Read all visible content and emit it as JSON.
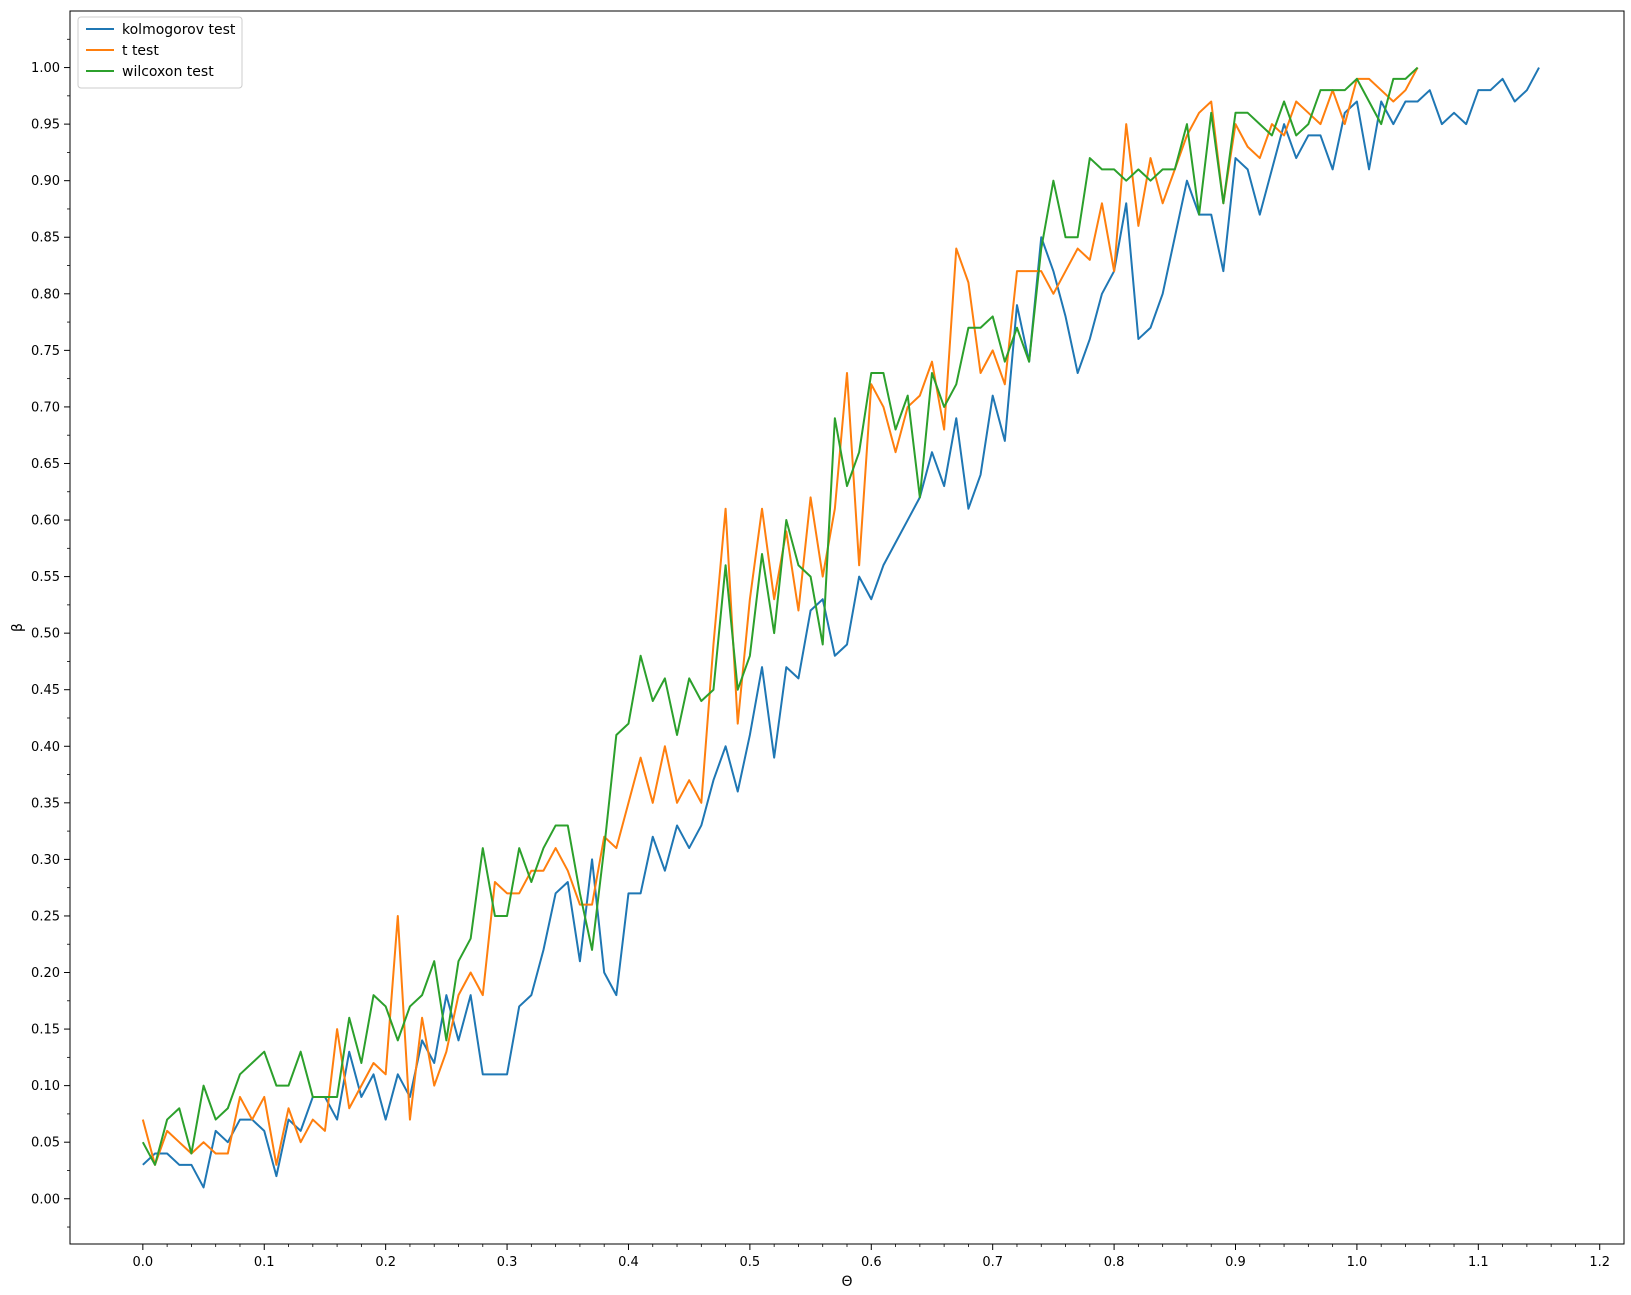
{
  "chart_data": {
    "type": "line",
    "title": "",
    "xlabel": "Θ",
    "ylabel": "β",
    "xlim": [
      -0.06,
      1.22
    ],
    "ylim": [
      -0.04,
      1.05
    ],
    "x_ticks": [
      0.0,
      0.1,
      0.2,
      0.3,
      0.4,
      0.5,
      0.6,
      0.7,
      0.8,
      0.9,
      1.0,
      1.1,
      1.2
    ],
    "x_tick_labels": [
      "0.0",
      "0.1",
      "0.2",
      "0.3",
      "0.4",
      "0.5",
      "0.6",
      "0.7",
      "0.8",
      "0.9",
      "1.0",
      "1.1",
      "1.2"
    ],
    "y_ticks": [
      0.0,
      0.05,
      0.1,
      0.15,
      0.2,
      0.25,
      0.3,
      0.35,
      0.4,
      0.45,
      0.5,
      0.55,
      0.6,
      0.65,
      0.7,
      0.75,
      0.8,
      0.85,
      0.9,
      0.95,
      1.0
    ],
    "y_tick_labels": [
      "0.00",
      "0.05",
      "0.10",
      "0.15",
      "0.20",
      "0.25",
      "0.30",
      "0.35",
      "0.40",
      "0.45",
      "0.50",
      "0.55",
      "0.60",
      "0.65",
      "0.70",
      "0.75",
      "0.80",
      "0.85",
      "0.90",
      "0.95",
      "1.00"
    ],
    "grid": false,
    "legend_position": "top-left",
    "series": [
      {
        "name": "kolmogorov test",
        "color": "#1f77b4",
        "x_start": 0.0,
        "x_step": 0.01,
        "values": [
          0.03,
          0.04,
          0.04,
          0.03,
          0.03,
          0.01,
          0.06,
          0.05,
          0.07,
          0.07,
          0.06,
          0.02,
          0.07,
          0.06,
          0.09,
          0.09,
          0.07,
          0.13,
          0.09,
          0.11,
          0.07,
          0.11,
          0.09,
          0.14,
          0.12,
          0.18,
          0.14,
          0.18,
          0.11,
          0.11,
          0.11,
          0.17,
          0.18,
          0.22,
          0.27,
          0.28,
          0.21,
          0.3,
          0.2,
          0.18,
          0.27,
          0.27,
          0.32,
          0.29,
          0.33,
          0.31,
          0.33,
          0.37,
          0.4,
          0.36,
          0.41,
          0.47,
          0.39,
          0.47,
          0.46,
          0.52,
          0.53,
          0.48,
          0.49,
          0.55,
          0.53,
          0.56,
          0.58,
          0.6,
          0.62,
          0.66,
          0.63,
          0.69,
          0.61,
          0.64,
          0.71,
          0.67,
          0.79,
          0.74,
          0.85,
          0.82,
          0.78,
          0.73,
          0.76,
          0.8,
          0.82,
          0.88,
          0.76,
          0.77,
          0.8,
          0.85,
          0.9,
          0.87,
          0.87,
          0.82,
          0.92,
          0.91,
          0.87,
          0.91,
          0.95,
          0.92,
          0.94,
          0.94,
          0.91,
          0.96,
          0.97,
          0.91,
          0.97,
          0.95,
          0.97,
          0.97,
          0.98,
          0.95,
          0.96,
          0.95,
          0.98,
          0.98,
          0.99,
          0.97,
          0.98,
          1.0
        ]
      },
      {
        "name": "t test",
        "color": "#ff7f0e",
        "x_start": 0.0,
        "x_step": 0.01,
        "values": [
          0.07,
          0.03,
          0.06,
          0.05,
          0.04,
          0.05,
          0.04,
          0.04,
          0.09,
          0.07,
          0.09,
          0.03,
          0.08,
          0.05,
          0.07,
          0.06,
          0.15,
          0.08,
          0.1,
          0.12,
          0.11,
          0.25,
          0.07,
          0.16,
          0.1,
          0.13,
          0.18,
          0.2,
          0.18,
          0.28,
          0.27,
          0.27,
          0.29,
          0.29,
          0.31,
          0.29,
          0.26,
          0.26,
          0.32,
          0.31,
          0.35,
          0.39,
          0.35,
          0.4,
          0.35,
          0.37,
          0.35,
          0.49,
          0.61,
          0.42,
          0.53,
          0.61,
          0.53,
          0.59,
          0.52,
          0.62,
          0.55,
          0.61,
          0.73,
          0.56,
          0.72,
          0.7,
          0.66,
          0.7,
          0.71,
          0.74,
          0.68,
          0.84,
          0.81,
          0.73,
          0.75,
          0.72,
          0.82,
          0.82,
          0.82,
          0.8,
          0.82,
          0.84,
          0.83,
          0.88,
          0.82,
          0.95,
          0.86,
          0.92,
          0.88,
          0.91,
          0.94,
          0.96,
          0.97,
          0.88,
          0.95,
          0.93,
          0.92,
          0.95,
          0.94,
          0.97,
          0.96,
          0.95,
          0.98,
          0.95,
          0.99,
          0.99,
          0.98,
          0.97,
          0.98,
          1.0
        ]
      },
      {
        "name": "wilcoxon test",
        "color": "#2ca02c",
        "x_start": 0.0,
        "x_step": 0.01,
        "values": [
          0.05,
          0.03,
          0.07,
          0.08,
          0.04,
          0.1,
          0.07,
          0.08,
          0.11,
          0.12,
          0.13,
          0.1,
          0.1,
          0.13,
          0.09,
          0.09,
          0.09,
          0.16,
          0.12,
          0.18,
          0.17,
          0.14,
          0.17,
          0.18,
          0.21,
          0.14,
          0.21,
          0.23,
          0.31,
          0.25,
          0.25,
          0.31,
          0.28,
          0.31,
          0.33,
          0.33,
          0.27,
          0.22,
          0.31,
          0.41,
          0.42,
          0.48,
          0.44,
          0.46,
          0.41,
          0.46,
          0.44,
          0.45,
          0.56,
          0.45,
          0.48,
          0.57,
          0.5,
          0.6,
          0.56,
          0.55,
          0.49,
          0.69,
          0.63,
          0.66,
          0.73,
          0.73,
          0.68,
          0.71,
          0.62,
          0.73,
          0.7,
          0.72,
          0.77,
          0.77,
          0.78,
          0.74,
          0.77,
          0.74,
          0.84,
          0.9,
          0.85,
          0.85,
          0.92,
          0.91,
          0.91,
          0.9,
          0.91,
          0.9,
          0.91,
          0.91,
          0.95,
          0.87,
          0.96,
          0.88,
          0.96,
          0.96,
          0.95,
          0.94,
          0.97,
          0.94,
          0.95,
          0.98,
          0.98,
          0.98,
          0.99,
          0.97,
          0.95,
          0.99,
          0.99,
          1.0
        ]
      }
    ]
  }
}
